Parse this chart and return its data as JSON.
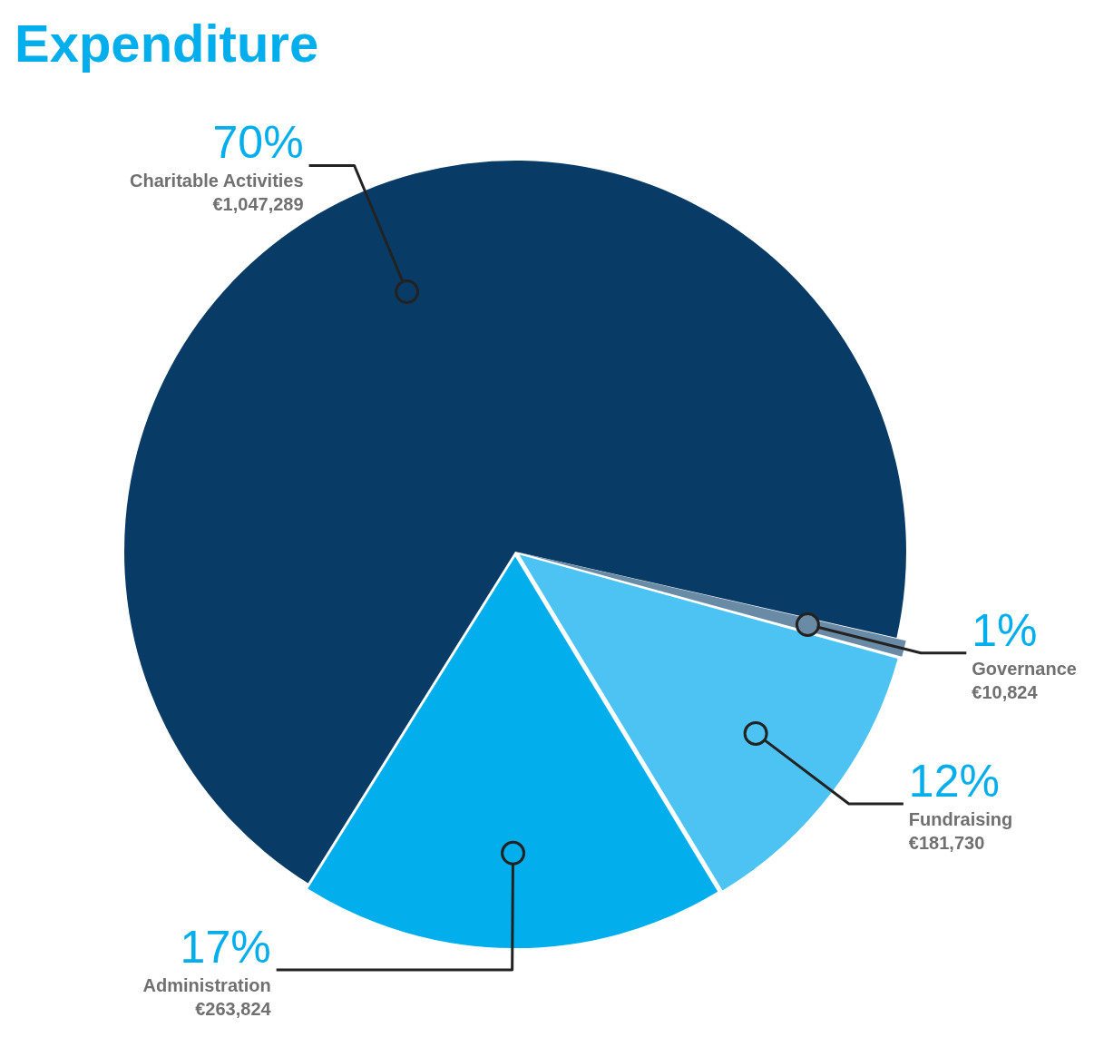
{
  "chart_data": {
    "type": "pie",
    "title": "Expenditure",
    "categories": [
      "Charitable Activities",
      "Governance",
      "Fundraising",
      "Administration"
    ],
    "values": [
      1047289,
      10824,
      181730,
      263824
    ],
    "colors": [
      "#083c66",
      "#6a8ba5",
      "#4cc3f2",
      "#03aeec"
    ],
    "value_labels": [
      "€1,047,289",
      "€10,824",
      "€181,730",
      "€263,824"
    ],
    "annotations": [
      {
        "text": "70%",
        "x": "Charitable Activities"
      },
      {
        "text": "1%",
        "x": "Governance"
      },
      {
        "text": "12%",
        "x": "Fundraising"
      },
      {
        "text": "17%",
        "x": "Administration"
      }
    ],
    "legend": false
  }
}
